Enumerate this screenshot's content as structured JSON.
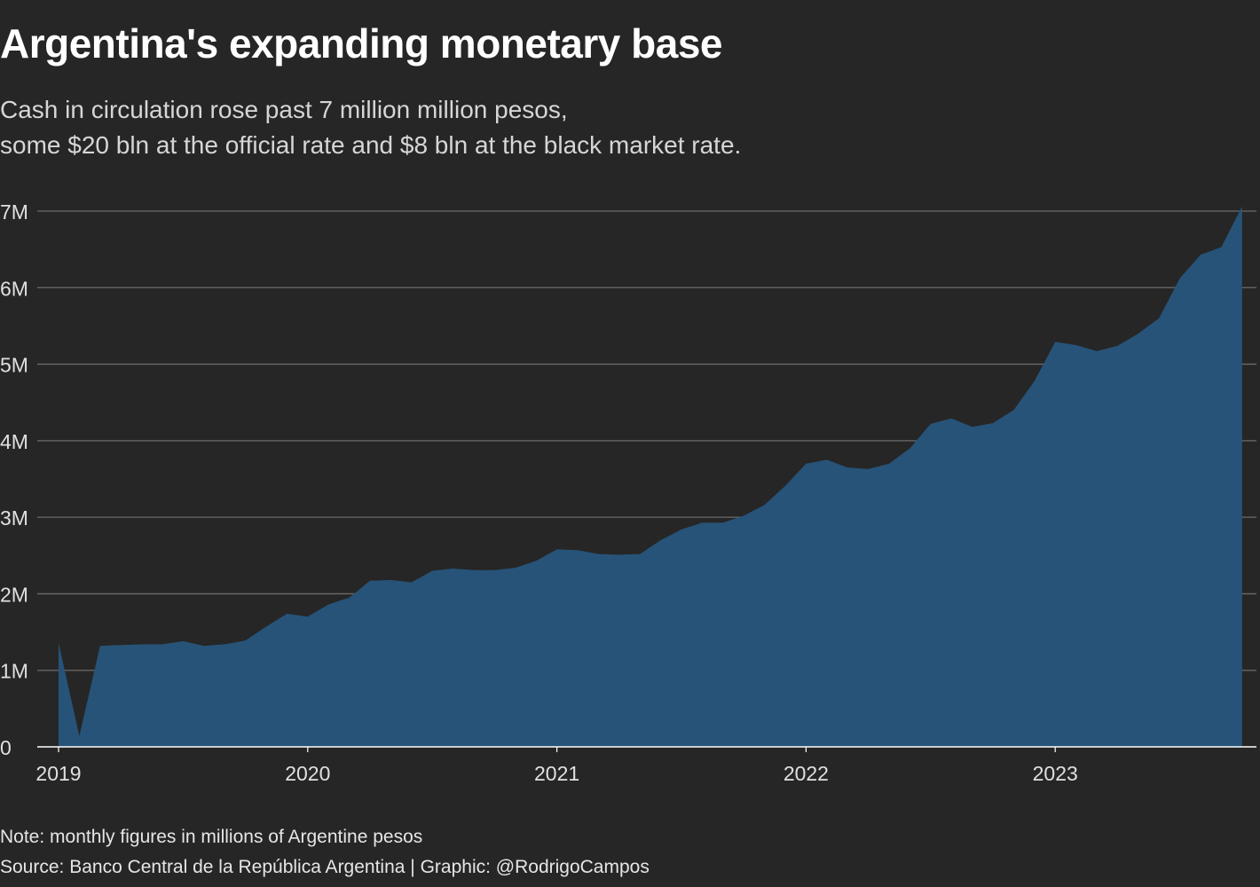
{
  "title": "Argentina's expanding monetary base",
  "subtitle": [
    "Cash in circulation rose past 7 million million pesos,",
    "some $20 bln at the official rate and $8 bln at the black market rate."
  ],
  "footer": {
    "note": "Note: monthly figures in millions of Argentine pesos",
    "source": "Source: Banco Central de la República Argentina | Graphic: @RodrigoCampos"
  },
  "colors": {
    "background": "#262626",
    "area": "#275378",
    "grid": "#6b6b6b",
    "axis_text": "#e0e0e0"
  },
  "chart_data": {
    "type": "area",
    "x_label_ticks": [
      "2019",
      "2020",
      "2021",
      "2022",
      "2023"
    ],
    "y_ticks": [
      0,
      1,
      2,
      3,
      4,
      5,
      6,
      7
    ],
    "y_tick_labels": [
      "0",
      "1M",
      "2M",
      "3M",
      "4M",
      "5M",
      "6M",
      "7M"
    ],
    "ylim": [
      0,
      7
    ],
    "grid": true,
    "xlabel": "",
    "ylabel": "",
    "x": [
      "2019-01",
      "2019-02",
      "2019-03",
      "2019-04",
      "2019-05",
      "2019-06",
      "2019-07",
      "2019-08",
      "2019-09",
      "2019-10",
      "2019-11",
      "2019-12",
      "2020-01",
      "2020-02",
      "2020-03",
      "2020-04",
      "2020-05",
      "2020-06",
      "2020-07",
      "2020-08",
      "2020-09",
      "2020-10",
      "2020-11",
      "2020-12",
      "2021-01",
      "2021-02",
      "2021-03",
      "2021-04",
      "2021-05",
      "2021-06",
      "2021-07",
      "2021-08",
      "2021-09",
      "2021-10",
      "2021-11",
      "2021-12",
      "2022-01",
      "2022-02",
      "2022-03",
      "2022-04",
      "2022-05",
      "2022-06",
      "2022-07",
      "2022-08",
      "2022-09",
      "2022-10",
      "2022-11",
      "2022-12",
      "2023-01",
      "2023-02",
      "2023-03",
      "2023-04",
      "2023-05",
      "2023-06",
      "2023-07",
      "2023-08",
      "2023-09",
      "2023-10"
    ],
    "values": [
      1.36,
      0.14,
      1.32,
      1.33,
      1.34,
      1.34,
      1.38,
      1.32,
      1.34,
      1.39,
      1.57,
      1.74,
      1.7,
      1.86,
      1.95,
      2.17,
      2.18,
      2.15,
      2.3,
      2.33,
      2.31,
      2.31,
      2.34,
      2.43,
      2.58,
      2.57,
      2.52,
      2.51,
      2.52,
      2.7,
      2.84,
      2.93,
      2.93,
      3.02,
      3.16,
      3.41,
      3.7,
      3.75,
      3.65,
      3.63,
      3.7,
      3.9,
      4.22,
      4.29,
      4.18,
      4.23,
      4.4,
      4.78,
      5.29,
      5.25,
      5.17,
      5.24,
      5.4,
      5.6,
      6.12,
      6.43,
      6.53,
      7.06
    ]
  }
}
